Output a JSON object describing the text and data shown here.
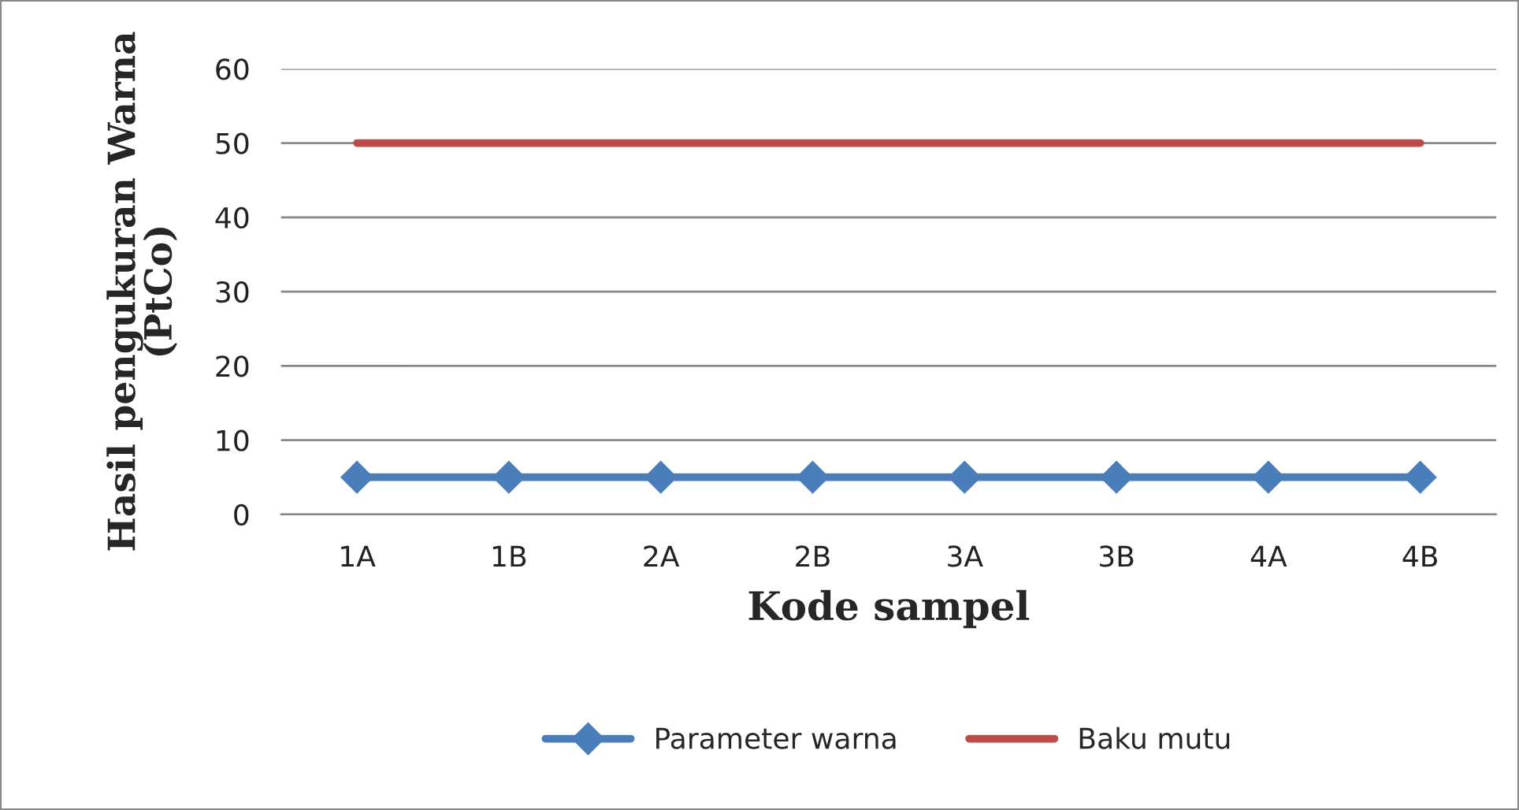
{
  "chart_data": {
    "type": "line",
    "xlabel": "Kode sampel",
    "ylabel": "Hasil pengukuran Warna\n(PtCo)",
    "categories": [
      "1A",
      "1B",
      "2A",
      "2B",
      "3A",
      "3B",
      "4A",
      "4B"
    ],
    "series": [
      {
        "name": "Parameter warna",
        "color": "#4a7ebb",
        "values": [
          5,
          5,
          5,
          5,
          5,
          5,
          5,
          5
        ],
        "marker": "diamond"
      },
      {
        "name": "Baku mutu",
        "color": "#be4b48",
        "values": [
          50,
          50,
          50,
          50,
          50,
          50,
          50,
          50
        ],
        "marker": "none"
      }
    ],
    "ylim": [
      0,
      60
    ],
    "yticks": [
      0,
      10,
      20,
      30,
      40,
      50,
      60
    ],
    "grid": "y",
    "legend": "bottom",
    "line_style": "solid"
  }
}
